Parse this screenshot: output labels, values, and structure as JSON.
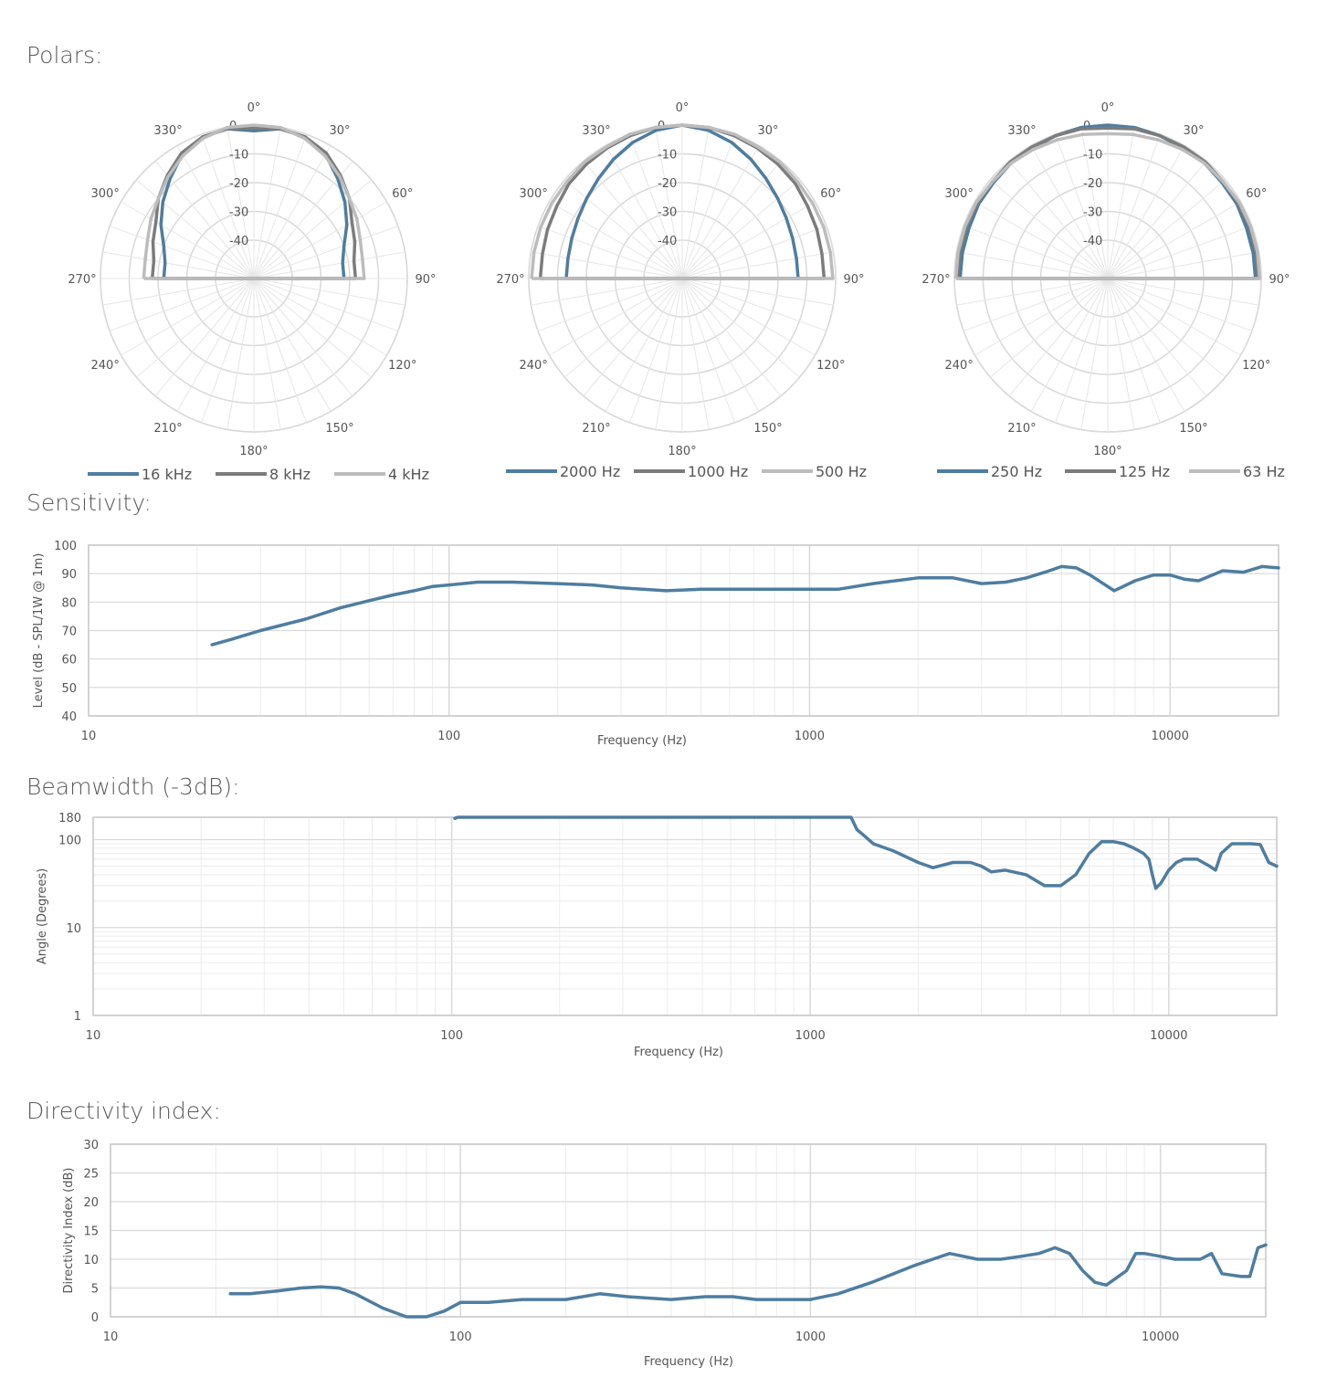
{
  "sections": {
    "polars": "Polars:",
    "sensitivity": "Sensitivity:",
    "beamwidth": "Beamwidth (-3dB):",
    "directivity": "Directivity index:"
  },
  "colors": {
    "series1": "#4e7da0",
    "series2": "#7c7c7c",
    "series3": "#bcbcbc",
    "grid": "#d9d9d9"
  },
  "chart_data": [
    {
      "type": "polar",
      "angle_ticks": [
        "0°",
        "30°",
        "60°",
        "90°",
        "120°",
        "150°",
        "180°",
        "210°",
        "240°",
        "270°",
        "300°",
        "330°"
      ],
      "radial_ticks": [
        0,
        -10,
        -20,
        -30,
        -40
      ],
      "rlim": [
        -40,
        0
      ],
      "series": [
        {
          "name": "16 kHz",
          "angles": [
            0,
            10,
            20,
            30,
            40,
            50,
            60,
            70,
            80,
            90
          ],
          "values": [
            -2,
            -0.5,
            -1,
            -3.5,
            -8,
            -12,
            -16,
            -20,
            -22,
            -22
          ]
        },
        {
          "name": "8 kHz",
          "angles": [
            0,
            10,
            20,
            30,
            40,
            50,
            60,
            70,
            80,
            90
          ],
          "values": [
            -1,
            -0.5,
            -1,
            -3,
            -6.5,
            -10,
            -14,
            -16,
            -18,
            -18
          ]
        },
        {
          "name": "4 kHz",
          "angles": [
            0,
            10,
            20,
            30,
            40,
            50,
            60,
            70,
            80,
            90
          ],
          "values": [
            0,
            0,
            -1.5,
            -4,
            -7,
            -10,
            -12,
            -14,
            -15,
            -15
          ]
        }
      ]
    },
    {
      "type": "polar",
      "angle_ticks": [
        "0°",
        "30°",
        "60°",
        "90°",
        "120°",
        "150°",
        "180°",
        "210°",
        "240°",
        "270°",
        "300°",
        "330°"
      ],
      "radial_ticks": [
        0,
        -10,
        -20,
        -30,
        -40
      ],
      "rlim": [
        -40,
        0
      ],
      "series": [
        {
          "name": "2000 Hz",
          "angles": [
            0,
            10,
            20,
            30,
            40,
            50,
            60,
            70,
            80,
            90
          ],
          "values": [
            0,
            -1,
            -3,
            -5.5,
            -8,
            -10,
            -11.5,
            -12.5,
            -13,
            -13
          ]
        },
        {
          "name": "1000 Hz",
          "angles": [
            0,
            10,
            20,
            30,
            40,
            50,
            60,
            70,
            80,
            90
          ],
          "values": [
            0,
            0,
            -0.5,
            -1,
            -1.5,
            -2,
            -3,
            -3.5,
            -4,
            -4
          ]
        },
        {
          "name": "500 Hz",
          "angles": [
            0,
            10,
            20,
            30,
            40,
            50,
            60,
            70,
            80,
            90
          ],
          "values": [
            0,
            0,
            0,
            -0.5,
            -0.5,
            -1,
            -1,
            -1,
            -1,
            -1
          ]
        }
      ]
    },
    {
      "type": "polar",
      "angle_ticks": [
        "0°",
        "30°",
        "60°",
        "90°",
        "120°",
        "150°",
        "180°",
        "210°",
        "240°",
        "270°",
        "300°",
        "330°"
      ],
      "radial_ticks": [
        0,
        -10,
        -20,
        -30,
        -40
      ],
      "rlim": [
        -40,
        0
      ],
      "series": [
        {
          "name": "250 Hz",
          "angles": [
            0,
            10,
            20,
            30,
            40,
            50,
            60,
            70,
            80,
            90
          ],
          "values": [
            0,
            0,
            -0.5,
            -1,
            -1,
            -1.5,
            -1.5,
            -2,
            -2,
            -2
          ]
        },
        {
          "name": "125 Hz",
          "angles": [
            0,
            10,
            20,
            30,
            40,
            50,
            60,
            70,
            80,
            90
          ],
          "values": [
            -1,
            -0.5,
            -0.5,
            -0.5,
            -0.5,
            -1,
            -1,
            -1,
            -1,
            -1
          ]
        },
        {
          "name": "63 Hz",
          "angles": [
            0,
            10,
            20,
            30,
            40,
            50,
            60,
            70,
            80,
            90
          ],
          "values": [
            -3,
            -2.5,
            -2,
            -1.5,
            -1,
            -1,
            -0.5,
            -0.5,
            -0.5,
            -0.5
          ]
        }
      ]
    },
    {
      "type": "line",
      "xscale": "log",
      "xlim": [
        10,
        20000
      ],
      "ylim": [
        40,
        100
      ],
      "xlabel": "Frequency (Hz)",
      "ylabel": "Level (dB - SPL/1W @ 1m)",
      "xticks": [
        10,
        100,
        1000,
        10000
      ],
      "yticks": [
        40,
        50,
        60,
        70,
        80,
        90,
        100
      ],
      "grid": true,
      "x": [
        22,
        25,
        30,
        40,
        50,
        60,
        70,
        80,
        90,
        100,
        120,
        150,
        200,
        250,
        300,
        400,
        500,
        600,
        700,
        800,
        900,
        1000,
        1200,
        1500,
        2000,
        2500,
        3000,
        3500,
        4000,
        4500,
        5000,
        5500,
        6000,
        7000,
        8000,
        9000,
        10000,
        11000,
        12000,
        14000,
        16000,
        18000,
        20000
      ],
      "y": [
        65,
        67,
        70,
        74,
        78,
        80.5,
        82.5,
        84,
        85.5,
        86,
        87,
        87,
        86.5,
        86,
        85,
        84,
        84.5,
        84.5,
        84.5,
        84.5,
        84.5,
        84.5,
        84.5,
        86.5,
        88.5,
        88.5,
        86.5,
        87,
        88.5,
        90.5,
        92.5,
        92,
        89.5,
        84,
        87.5,
        89.5,
        89.5,
        88,
        87.5,
        91,
        90.5,
        92.5,
        92
      ]
    },
    {
      "type": "line",
      "xscale": "log",
      "yscale": "log",
      "xlim": [
        10,
        20000
      ],
      "ylim": [
        1,
        180
      ],
      "xlabel": "Frequency (Hz)",
      "ylabel": "Angle (Degrees)",
      "xticks": [
        10,
        100,
        1000,
        10000
      ],
      "yticks": [
        1,
        10,
        100,
        180
      ],
      "grid": true,
      "x": [
        102,
        104,
        110,
        150,
        200,
        300,
        500,
        700,
        1000,
        1200,
        1300,
        1350,
        1400,
        1500,
        1700,
        2000,
        2200,
        2500,
        2800,
        3000,
        3200,
        3500,
        4000,
        4500,
        5000,
        5500,
        6000,
        6500,
        7000,
        7500,
        8000,
        8500,
        8800,
        9000,
        9200,
        9500,
        10000,
        10500,
        11000,
        12000,
        13000,
        13500,
        14000,
        15000,
        16000,
        17000,
        18000,
        19000,
        20000
      ],
      "y": [
        175,
        180,
        180,
        180,
        180,
        180,
        180,
        180,
        180,
        180,
        180,
        130,
        115,
        90,
        75,
        55,
        48,
        55,
        55,
        50,
        43,
        45,
        40,
        30,
        30,
        40,
        70,
        95,
        95,
        90,
        80,
        70,
        60,
        40,
        28,
        32,
        45,
        55,
        60,
        60,
        50,
        45,
        70,
        90,
        90,
        90,
        88,
        55,
        50
      ]
    },
    {
      "type": "line",
      "xscale": "log",
      "xlim": [
        10,
        20000
      ],
      "ylim": [
        0,
        30
      ],
      "xlabel": "Frequency (Hz)",
      "ylabel": "Directivity Index (dB)",
      "xticks": [
        10,
        100,
        1000,
        10000
      ],
      "yticks": [
        0,
        5,
        10,
        15,
        20,
        25,
        30
      ],
      "grid": true,
      "x": [
        22,
        25,
        30,
        35,
        40,
        45,
        50,
        60,
        70,
        80,
        90,
        100,
        120,
        150,
        200,
        250,
        300,
        400,
        500,
        600,
        700,
        800,
        900,
        1000,
        1200,
        1500,
        2000,
        2500,
        3000,
        3500,
        4000,
        4500,
        5000,
        5500,
        6000,
        6500,
        7000,
        8000,
        8500,
        9000,
        10000,
        11000,
        12000,
        13000,
        14000,
        15000,
        17000,
        18000,
        19000,
        20000
      ],
      "y": [
        4,
        4,
        4.5,
        5,
        5.2,
        5,
        4,
        1.5,
        0,
        0,
        1,
        2.5,
        2.5,
        3,
        3,
        4,
        3.5,
        3,
        3.5,
        3.5,
        3,
        3,
        3,
        3,
        4,
        6,
        9,
        11,
        10,
        10,
        10.5,
        11,
        12,
        11,
        8,
        6,
        5.5,
        8,
        11,
        11,
        10.5,
        10,
        10,
        10,
        11,
        7.5,
        7,
        7,
        12,
        12.5
      ]
    }
  ]
}
